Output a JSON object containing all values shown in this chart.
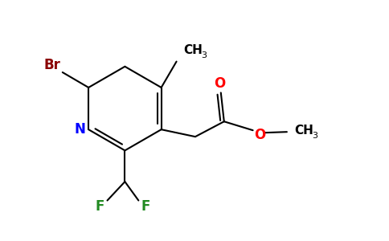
{
  "background_color": "#ffffff",
  "bond_color": "#000000",
  "N_color": "#0000ff",
  "Br_color": "#8b0000",
  "F_color": "#228b22",
  "O_color": "#ff0000",
  "bond_width": 1.5,
  "figsize": [
    4.84,
    3.0
  ],
  "dpi": 100,
  "xlim": [
    0,
    9.68
  ],
  "ylim": [
    0,
    6.0
  ]
}
